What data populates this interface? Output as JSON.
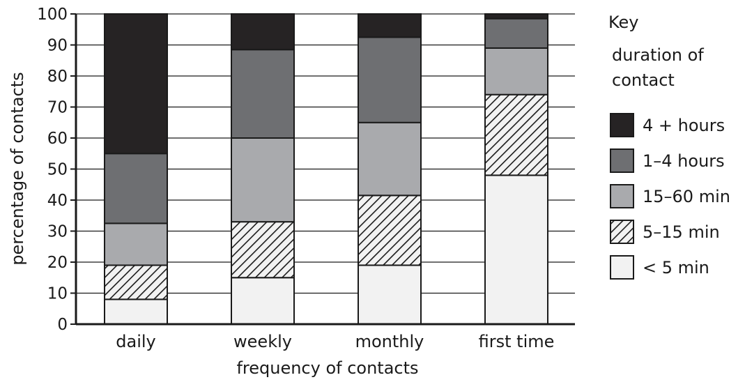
{
  "chart_data": {
    "type": "bar",
    "stacked": true,
    "xlabel": "frequency of contacts",
    "ylabel": "percentage of contacts",
    "ylim": [
      0,
      100
    ],
    "yticks": [
      0,
      10,
      20,
      30,
      40,
      50,
      60,
      70,
      80,
      90,
      100
    ],
    "grid": true,
    "legend_position": "right",
    "categories": [
      "daily",
      "weekly",
      "monthly",
      "first time"
    ],
    "series": [
      {
        "name": "< 5 min",
        "values": [
          8,
          15,
          19,
          48
        ],
        "color": "#f2f2f2",
        "pattern": "none"
      },
      {
        "name": "5–15 min",
        "values": [
          11,
          18,
          22.5,
          26
        ],
        "color": "#f2f2f2",
        "pattern": "hatch"
      },
      {
        "name": "15–60 min",
        "values": [
          13.5,
          27,
          23.5,
          15
        ],
        "color": "#a9aaad",
        "pattern": "none"
      },
      {
        "name": "1–4 hours",
        "values": [
          22.5,
          28.5,
          27.5,
          9.5
        ],
        "color": "#6e6f72",
        "pattern": "none"
      },
      {
        "name": "4 + hours",
        "values": [
          45,
          11.5,
          7.5,
          1.5
        ],
        "color": "#262324",
        "pattern": "none"
      }
    ],
    "legend": {
      "title": "Key",
      "subtitle_lines": [
        "duration of",
        "contact"
      ]
    }
  }
}
